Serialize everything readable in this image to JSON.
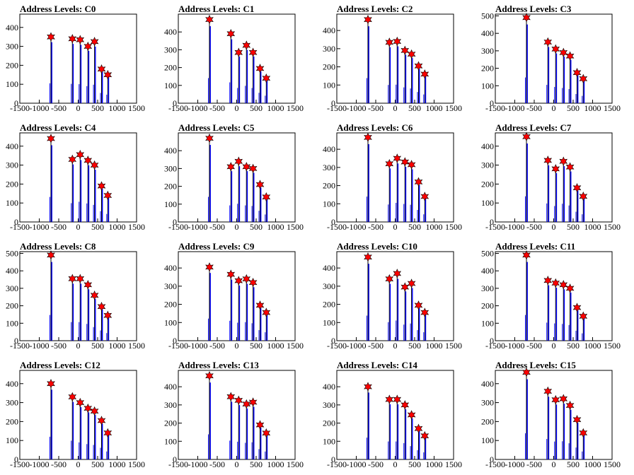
{
  "peak_x": [
    -700,
    -150,
    50,
    250,
    420,
    600,
    760
  ],
  "xlim": [
    -1500,
    1500
  ],
  "x_ticks": [
    -1500,
    -1000,
    -500,
    0,
    500,
    1000,
    1500
  ],
  "colors": {
    "hist": "#0000ff",
    "hist_dark": "#000000",
    "marker": "#ff0000",
    "axis": "#000000"
  },
  "chart_data": [
    {
      "type": "bar",
      "title": "Address Levels: C0",
      "ylim": [
        0,
        470
      ],
      "y_ticks": [
        0,
        100,
        200,
        300,
        400
      ],
      "markers": [
        350,
        340,
        335,
        300,
        325,
        180,
        150
      ]
    },
    {
      "type": "bar",
      "title": "Address Levels: C1",
      "ylim": [
        0,
        500
      ],
      "y_ticks": [
        0,
        100,
        200,
        300,
        400
      ],
      "markers": [
        470,
        390,
        285,
        325,
        285,
        195,
        140
      ]
    },
    {
      "type": "bar",
      "title": "Address Levels: C2",
      "ylim": [
        0,
        490
      ],
      "y_ticks": [
        0,
        100,
        200,
        300,
        400
      ],
      "markers": [
        460,
        335,
        340,
        290,
        270,
        205,
        160
      ]
    },
    {
      "type": "bar",
      "title": "Address Levels: C3",
      "ylim": [
        0,
        510
      ],
      "y_ticks": [
        0,
        100,
        200,
        300,
        400,
        500
      ],
      "markers": [
        490,
        350,
        310,
        290,
        270,
        175,
        140
      ]
    },
    {
      "type": "bar",
      "title": "Address Levels: C4",
      "ylim": [
        0,
        470
      ],
      "y_ticks": [
        0,
        100,
        200,
        300,
        400
      ],
      "markers": [
        440,
        330,
        355,
        325,
        300,
        190,
        140
      ]
    },
    {
      "type": "bar",
      "title": "Address Levels: C5",
      "ylim": [
        0,
        500
      ],
      "y_ticks": [
        0,
        100,
        200,
        300,
        400
      ],
      "markers": [
        470,
        310,
        340,
        310,
        300,
        210,
        140
      ]
    },
    {
      "type": "bar",
      "title": "Address Levels: C6",
      "ylim": [
        0,
        490
      ],
      "y_ticks": [
        0,
        100,
        200,
        300,
        400
      ],
      "markers": [
        465,
        320,
        350,
        330,
        315,
        220,
        140
      ]
    },
    {
      "type": "bar",
      "title": "Address Levels: C7",
      "ylim": [
        0,
        470
      ],
      "y_ticks": [
        0,
        100,
        200,
        300,
        400
      ],
      "markers": [
        450,
        325,
        280,
        320,
        290,
        180,
        135
      ]
    },
    {
      "type": "bar",
      "title": "Address Levels: C8",
      "ylim": [
        0,
        510
      ],
      "y_ticks": [
        0,
        100,
        200,
        300,
        400,
        500
      ],
      "markers": [
        490,
        355,
        355,
        320,
        260,
        195,
        145
      ]
    },
    {
      "type": "bar",
      "title": "Address Levels: C9",
      "ylim": [
        0,
        490
      ],
      "y_ticks": [
        0,
        100,
        200,
        300,
        400
      ],
      "markers": [
        405,
        365,
        330,
        340,
        320,
        195,
        155
      ]
    },
    {
      "type": "bar",
      "title": "Address Levels: C10",
      "ylim": [
        0,
        490
      ],
      "y_ticks": [
        0,
        100,
        200,
        300,
        400
      ],
      "markers": [
        460,
        340,
        370,
        295,
        315,
        195,
        155
      ]
    },
    {
      "type": "bar",
      "title": "Address Levels: C11",
      "ylim": [
        0,
        510
      ],
      "y_ticks": [
        0,
        100,
        200,
        300,
        400,
        500
      ],
      "markers": [
        490,
        345,
        330,
        320,
        300,
        190,
        140
      ]
    },
    {
      "type": "bar",
      "title": "Address Levels: C12",
      "ylim": [
        0,
        470
      ],
      "y_ticks": [
        0,
        100,
        200,
        300,
        400
      ],
      "markers": [
        400,
        330,
        300,
        270,
        255,
        205,
        140
      ]
    },
    {
      "type": "bar",
      "title": "Address Levels: C13",
      "ylim": [
        0,
        490
      ],
      "y_ticks": [
        0,
        100,
        200,
        300,
        400
      ],
      "markers": [
        460,
        345,
        325,
        305,
        315,
        190,
        145
      ]
    },
    {
      "type": "bar",
      "title": "Address Levels: C14",
      "ylim": [
        0,
        490
      ],
      "y_ticks": [
        0,
        100,
        200,
        300,
        400
      ],
      "markers": [
        400,
        330,
        330,
        300,
        245,
        170,
        130
      ]
    },
    {
      "type": "bar",
      "title": "Address Levels: C15",
      "ylim": [
        0,
        470
      ],
      "y_ticks": [
        0,
        100,
        200,
        300,
        400
      ],
      "markers": [
        460,
        360,
        315,
        320,
        285,
        210,
        140
      ]
    }
  ]
}
